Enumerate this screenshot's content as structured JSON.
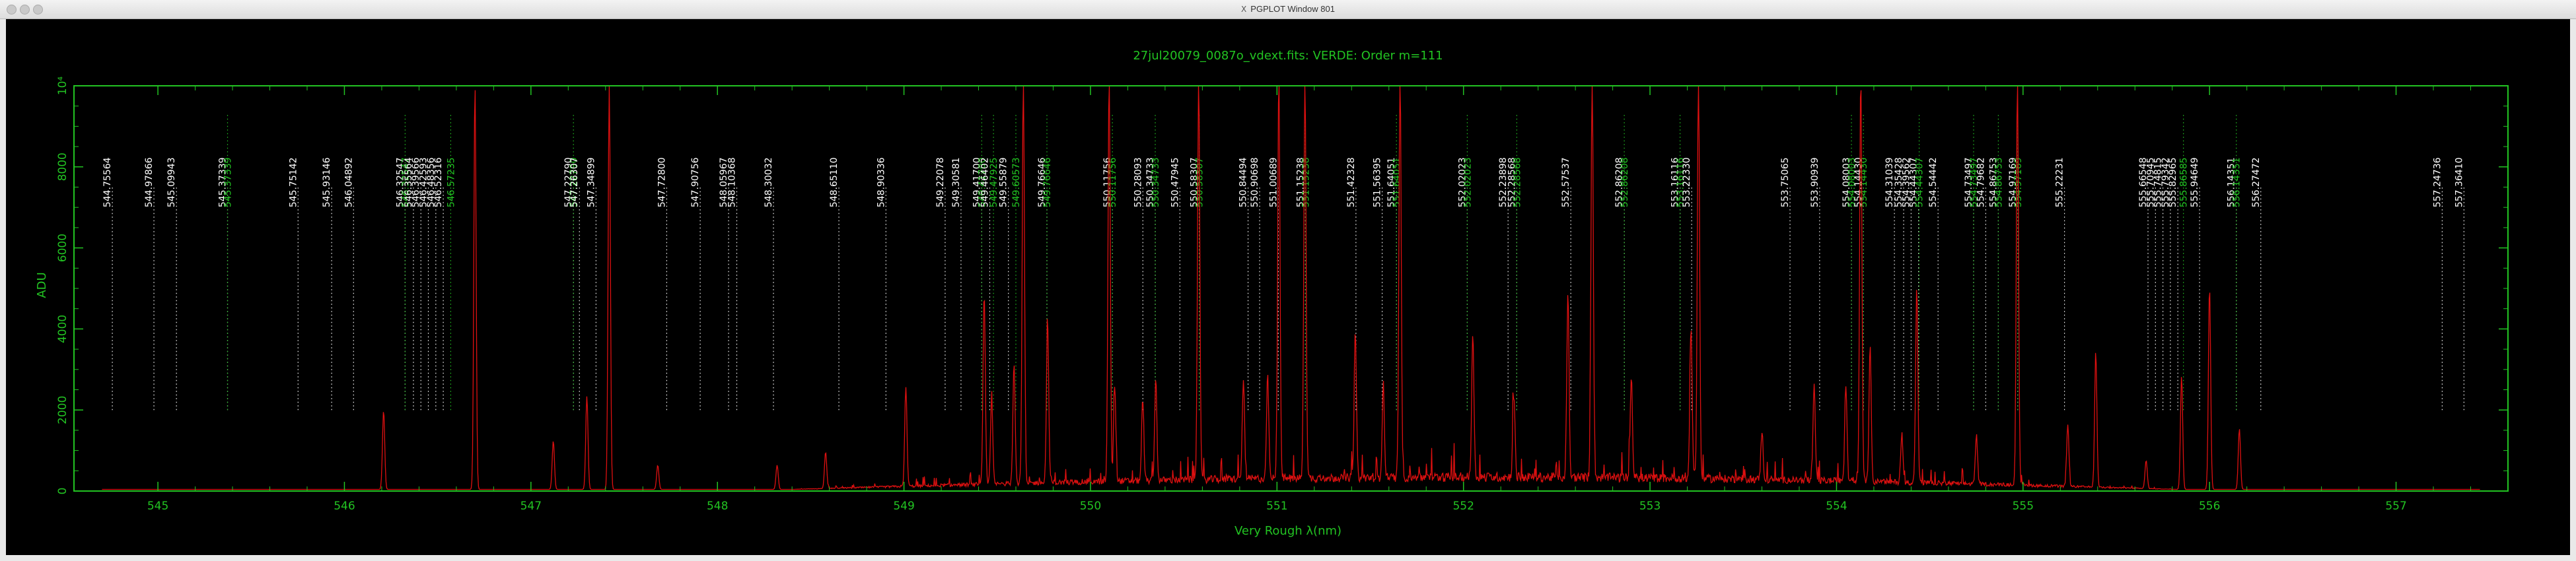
{
  "window": {
    "title": "PGPLOT Window 801",
    "x_glyph": "X"
  },
  "chart_data": {
    "type": "line",
    "title": "27jul20079_0087o_vdext.fits: VERDE: Order m=111",
    "xlabel": "Very Rough λ(nm)",
    "ylabel": "ADU",
    "xlim": [
      544.55,
      557.6
    ],
    "ylim": [
      0,
      10000
    ],
    "x_ticks": [
      545,
      546,
      547,
      548,
      549,
      550,
      551,
      552,
      553,
      554,
      555,
      556,
      557
    ],
    "y_ticks": [
      0,
      2000,
      4000,
      6000,
      8000,
      10000
    ],
    "y_tick_labels": [
      "0",
      "2000",
      "4000",
      "6000",
      "8000",
      "10⁴"
    ],
    "grid": false,
    "colors": {
      "frame": "#22c322",
      "spectrum": "#dd1010",
      "line_white": "#ffffff",
      "line_green": "#22c322",
      "background": "#000000"
    },
    "series": [
      {
        "name": "",
        "peaks": [
          [
            546.21,
            1950
          ],
          [
            546.7,
            10000
          ],
          [
            547.12,
            1200
          ],
          [
            547.3,
            2300
          ],
          [
            547.42,
            10000
          ],
          [
            547.68,
            600
          ],
          [
            548.32,
            600
          ],
          [
            548.58,
            900
          ],
          [
            549.01,
            2450
          ],
          [
            549.43,
            4700
          ],
          [
            549.47,
            2100
          ],
          [
            549.59,
            3000
          ],
          [
            549.64,
            10000
          ],
          [
            549.77,
            4000
          ],
          [
            550.1,
            10000
          ],
          [
            550.13,
            2400
          ],
          [
            550.28,
            2000
          ],
          [
            550.35,
            2500
          ],
          [
            550.58,
            10000
          ],
          [
            550.82,
            2500
          ],
          [
            550.95,
            2500
          ],
          [
            551.01,
            10000
          ],
          [
            551.15,
            10000
          ],
          [
            551.42,
            3600
          ],
          [
            551.57,
            2300
          ],
          [
            551.66,
            10000
          ],
          [
            552.05,
            3600
          ],
          [
            552.27,
            2100
          ],
          [
            552.56,
            4500
          ],
          [
            552.69,
            10000
          ],
          [
            552.9,
            2500
          ],
          [
            553.22,
            3800
          ],
          [
            553.26,
            10000
          ],
          [
            553.6,
            1200
          ],
          [
            553.88,
            2300
          ],
          [
            554.05,
            2400
          ],
          [
            554.13,
            10000
          ],
          [
            554.18,
            3300
          ],
          [
            554.35,
            1200
          ],
          [
            554.43,
            4800
          ],
          [
            554.75,
            1200
          ],
          [
            554.97,
            10000
          ],
          [
            555.24,
            1500
          ],
          [
            555.39,
            3300
          ],
          [
            555.66,
            700
          ],
          [
            555.85,
            2800
          ],
          [
            556.0,
            5000
          ],
          [
            556.16,
            1500
          ]
        ]
      }
    ],
    "line_markers": [
      {
        "x": 544.75564,
        "label": "544.75564",
        "color": "white"
      },
      {
        "x": 544.97866,
        "label": "544.97866",
        "color": "white"
      },
      {
        "x": 545.09943,
        "label": "545.09943",
        "color": "white"
      },
      {
        "x": 545.37339,
        "label": "545.37339",
        "color": "white"
      },
      {
        "x": 545.37339,
        "label": "545.37339",
        "color": "green"
      },
      {
        "x": 545.75142,
        "label": "545.75142",
        "color": "white"
      },
      {
        "x": 545.93146,
        "label": "545.93146",
        "color": "white"
      },
      {
        "x": 546.04892,
        "label": "546.04892",
        "color": "white"
      },
      {
        "x": 546.32547,
        "label": "546.32547",
        "color": "white"
      },
      {
        "x": 546.32547,
        "label": "546.32547",
        "color": "green"
      },
      {
        "x": 546.37,
        "label": "546.35564",
        "color": "white"
      },
      {
        "x": 546.41,
        "label": "546.39566",
        "color": "white"
      },
      {
        "x": 546.45,
        "label": "546.42593",
        "color": "white"
      },
      {
        "x": 546.49,
        "label": "546.48356",
        "color": "white"
      },
      {
        "x": 546.53,
        "label": "546.52316",
        "color": "white"
      },
      {
        "x": 546.57,
        "label": "546.57235",
        "color": "green"
      },
      {
        "x": 547.2279,
        "label": "547.22790",
        "color": "white"
      },
      {
        "x": 547.2279,
        "label": "547.22790",
        "color": "green"
      },
      {
        "x": 547.26,
        "label": "547.26307",
        "color": "white"
      },
      {
        "x": 547.34899,
        "label": "547.34899",
        "color": "white"
      },
      {
        "x": 547.728,
        "label": "547.72800",
        "color": "white"
      },
      {
        "x": 547.90756,
        "label": "547.90756",
        "color": "white"
      },
      {
        "x": 548.05967,
        "label": "548.05967",
        "color": "white"
      },
      {
        "x": 548.10368,
        "label": "548.10368",
        "color": "white"
      },
      {
        "x": 548.30032,
        "label": "548.30032",
        "color": "white"
      },
      {
        "x": 548.6511,
        "label": "548.65110",
        "color": "white"
      },
      {
        "x": 548.90336,
        "label": "548.90336",
        "color": "white"
      },
      {
        "x": 549.22078,
        "label": "549.22078",
        "color": "white"
      },
      {
        "x": 549.30581,
        "label": "549.30581",
        "color": "white"
      },
      {
        "x": 549.417,
        "label": "549.41700",
        "color": "white"
      },
      {
        "x": 549.417,
        "label": "549.41700",
        "color": "green"
      },
      {
        "x": 549.46,
        "label": "549.46402",
        "color": "white"
      },
      {
        "x": 549.48,
        "label": "549.47925",
        "color": "green"
      },
      {
        "x": 549.56,
        "label": "549.55879",
        "color": "white"
      },
      {
        "x": 549.6,
        "label": "549.60573",
        "color": "green"
      },
      {
        "x": 549.76646,
        "label": "549.76646",
        "color": "white"
      },
      {
        "x": 549.76646,
        "label": "549.76646",
        "color": "green"
      },
      {
        "x": 550.11756,
        "label": "550.11756",
        "color": "white"
      },
      {
        "x": 550.11756,
        "label": "550.11756",
        "color": "green"
      },
      {
        "x": 550.28093,
        "label": "550.28093",
        "color": "white"
      },
      {
        "x": 550.34733,
        "label": "550.34733",
        "color": "white"
      },
      {
        "x": 550.34733,
        "label": "550.34733",
        "color": "green"
      },
      {
        "x": 550.47945,
        "label": "550.47945",
        "color": "white"
      },
      {
        "x": 550.58307,
        "label": "550.58307",
        "color": "white"
      },
      {
        "x": 550.58307,
        "label": "550.58307",
        "color": "green"
      },
      {
        "x": 550.84494,
        "label": "550.84494",
        "color": "white"
      },
      {
        "x": 550.90698,
        "label": "550.90698",
        "color": "white"
      },
      {
        "x": 551.00689,
        "label": "551.00689",
        "color": "white"
      },
      {
        "x": 551.15238,
        "label": "551.15238",
        "color": "white"
      },
      {
        "x": 551.15238,
        "label": "551.15238",
        "color": "green"
      },
      {
        "x": 551.42328,
        "label": "551.42328",
        "color": "white"
      },
      {
        "x": 551.56395,
        "label": "551.56395",
        "color": "white"
      },
      {
        "x": 551.64051,
        "label": "551.64051",
        "color": "white"
      },
      {
        "x": 551.64051,
        "label": "551.64051",
        "color": "green"
      },
      {
        "x": 552.02023,
        "label": "552.02023",
        "color": "white"
      },
      {
        "x": 552.02023,
        "label": "552.02023",
        "color": "green"
      },
      {
        "x": 552.23898,
        "label": "552.23898",
        "color": "white"
      },
      {
        "x": 552.28568,
        "label": "552.28568",
        "color": "white"
      },
      {
        "x": 552.28568,
        "label": "552.28568",
        "color": "green"
      },
      {
        "x": 552.57537,
        "label": "552.57537",
        "color": "white"
      },
      {
        "x": 552.86208,
        "label": "552.86208",
        "color": "white"
      },
      {
        "x": 552.86208,
        "label": "552.86208",
        "color": "green"
      },
      {
        "x": 553.16116,
        "label": "553.16116",
        "color": "white"
      },
      {
        "x": 553.16116,
        "label": "553.16116",
        "color": "green"
      },
      {
        "x": 553.2233,
        "label": "553.22330",
        "color": "white"
      },
      {
        "x": 553.75065,
        "label": "553.75065",
        "color": "white"
      },
      {
        "x": 553.90939,
        "label": "553.90939",
        "color": "white"
      },
      {
        "x": 554.08003,
        "label": "554.08003",
        "color": "white"
      },
      {
        "x": 554.08003,
        "label": "554.08003",
        "color": "green"
      },
      {
        "x": 554.1443,
        "label": "554.14430",
        "color": "white"
      },
      {
        "x": 554.1443,
        "label": "554.14430",
        "color": "green"
      },
      {
        "x": 554.31039,
        "label": "554.31039",
        "color": "white"
      },
      {
        "x": 554.36,
        "label": "554.35428",
        "color": "white"
      },
      {
        "x": 554.4,
        "label": "554.39562",
        "color": "white"
      },
      {
        "x": 554.44,
        "label": "554.44307",
        "color": "white"
      },
      {
        "x": 554.44307,
        "label": "554.44307",
        "color": "green"
      },
      {
        "x": 554.54442,
        "label": "554.54442",
        "color": "white"
      },
      {
        "x": 554.73497,
        "label": "554.73497",
        "color": "white"
      },
      {
        "x": 554.73497,
        "label": "554.73497",
        "color": "green"
      },
      {
        "x": 554.8,
        "label": "554.79682",
        "color": "white"
      },
      {
        "x": 554.86753,
        "label": "554.86753",
        "color": "white"
      },
      {
        "x": 554.86753,
        "label": "554.86753",
        "color": "green"
      },
      {
        "x": 554.97169,
        "label": "554.97169",
        "color": "white"
      },
      {
        "x": 554.97169,
        "label": "554.97169",
        "color": "green"
      },
      {
        "x": 555.22231,
        "label": "555.22231",
        "color": "white"
      },
      {
        "x": 555.67,
        "label": "555.66548",
        "color": "white"
      },
      {
        "x": 555.71,
        "label": "555.70945",
        "color": "white"
      },
      {
        "x": 555.75,
        "label": "555.74815",
        "color": "white"
      },
      {
        "x": 555.79,
        "label": "555.79342",
        "color": "white"
      },
      {
        "x": 555.83,
        "label": "555.82965",
        "color": "white"
      },
      {
        "x": 555.86,
        "label": "555.86585",
        "color": "green"
      },
      {
        "x": 555.94649,
        "label": "555.94649",
        "color": "white"
      },
      {
        "x": 556.14351,
        "label": "556.14351",
        "color": "white"
      },
      {
        "x": 556.14351,
        "label": "556.14351",
        "color": "green"
      },
      {
        "x": 556.27472,
        "label": "556.27472",
        "color": "white"
      },
      {
        "x": 557.24736,
        "label": "557.24736",
        "color": "white"
      },
      {
        "x": 557.3641,
        "label": "557.36410",
        "color": "white"
      }
    ]
  }
}
